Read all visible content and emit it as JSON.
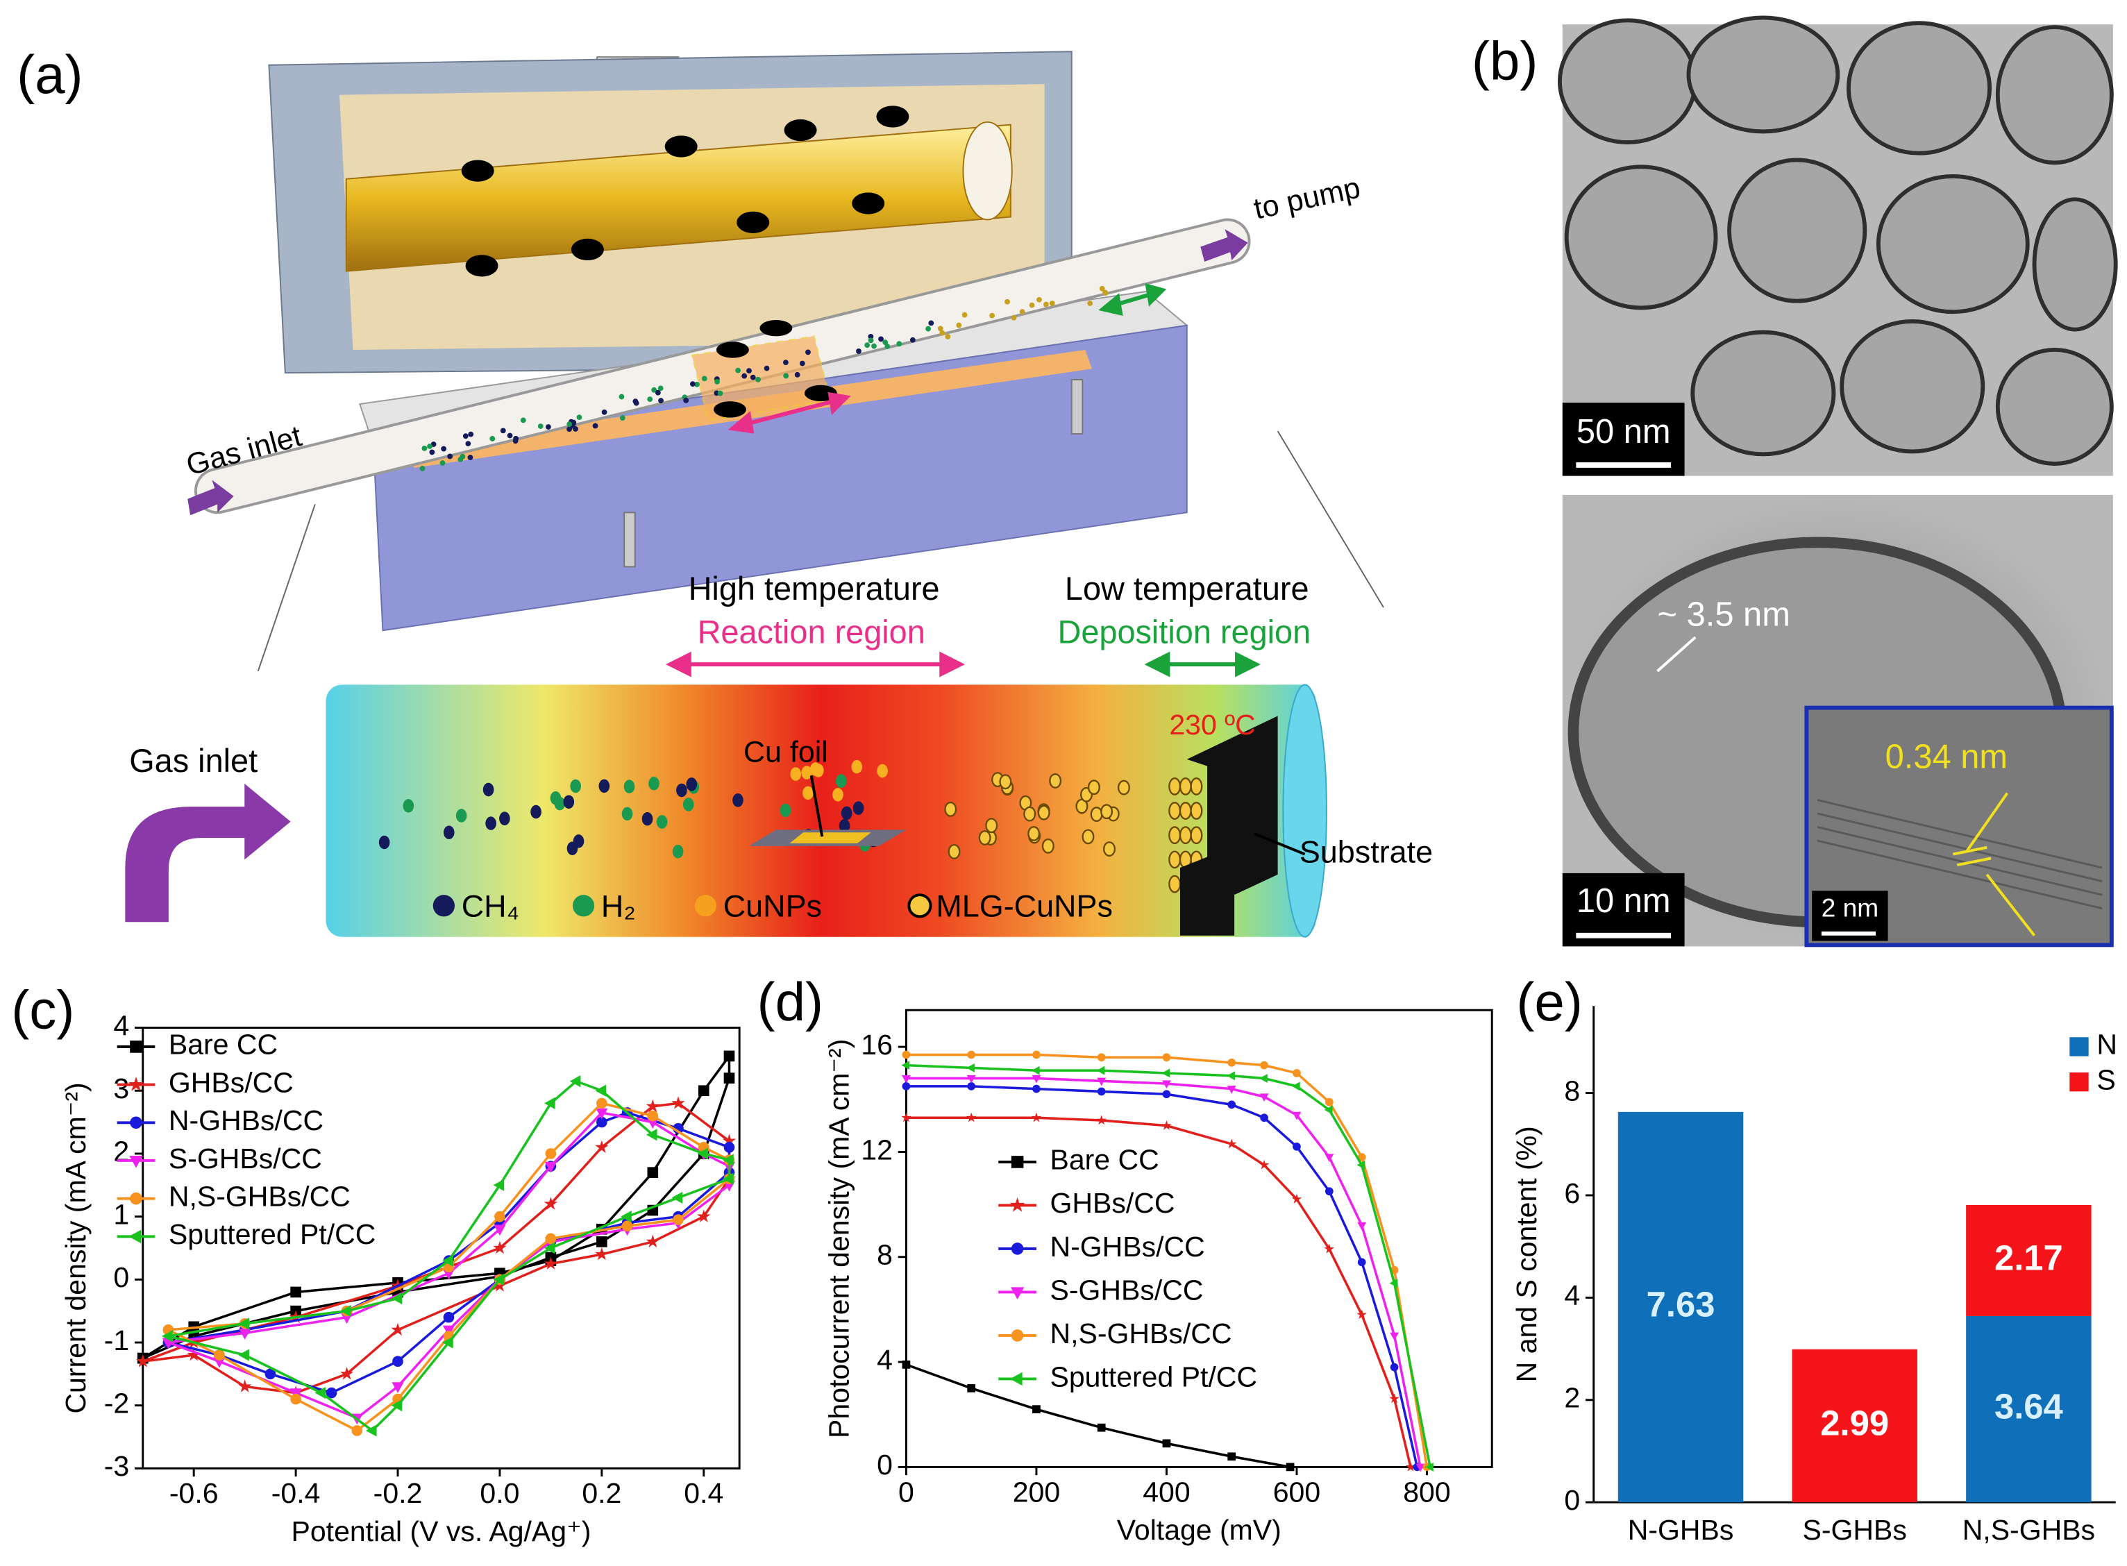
{
  "figure": {
    "panel_a": {
      "label": "(a)",
      "to_pump": "to pump",
      "gas_inlet_tube": "Gas inlet",
      "high_temperature": "High temperature",
      "reaction_region": "Reaction region",
      "low_temperature": "Low temperature",
      "deposition_region": "Deposition region",
      "gas_inlet": "Gas inlet",
      "cu_foil": "Cu foil",
      "temperature": "230 ºC",
      "substrate": "Substrate",
      "legend": [
        "CH₄",
        "H₂",
        "CuNPs",
        "MLG-CuNPs"
      ]
    },
    "panel_b": {
      "label": "(b)",
      "scale_top": "50 nm",
      "wall": "~ 3.5 nm",
      "spacing": "0.34 nm",
      "scale_bottom": "10 nm",
      "scale_inset": "2 nm"
    }
  },
  "chart_data": [
    {
      "type": "line",
      "panel_label": "(c)",
      "xlabel": "Potential (V vs. Ag/Ag⁺)",
      "ylabel": "Current density (mA cm⁻²)",
      "xlim": [
        -0.7,
        0.47
      ],
      "xticks": [
        -0.6,
        -0.4,
        -0.2,
        {
          "value": 0,
          "label": "0.0"
        },
        0.2,
        0.4
      ],
      "ylim": [
        -3,
        4
      ],
      "yticks": [
        -3,
        -2,
        -1,
        0,
        1,
        2,
        3,
        4
      ],
      "legend": "upper left",
      "series": [
        {
          "name": "Bare CC",
          "color": "#000000",
          "marker": "square",
          "x": [
            -0.7,
            -0.6,
            -0.4,
            -0.2,
            0,
            0.1,
            0.2,
            0.3,
            0.4,
            0.45,
            0.45,
            0.4,
            0.3,
            0.2,
            0.1,
            0,
            -0.2,
            -0.4,
            -0.6,
            -0.7
          ],
          "values": [
            -1.25,
            -0.75,
            -0.2,
            -0.05,
            0.1,
            0.3,
            0.8,
            1.7,
            3.0,
            3.55,
            3.2,
            2.0,
            1.1,
            0.6,
            0.35,
            0.05,
            -0.2,
            -0.5,
            -0.9,
            -1.25
          ]
        },
        {
          "name": "GHBs/CC",
          "color": "#e0201c",
          "marker": "star",
          "x": [
            -0.7,
            -0.6,
            -0.4,
            -0.2,
            0,
            0.1,
            0.2,
            0.3,
            0.35,
            0.45,
            0.45,
            0.4,
            0.3,
            0.2,
            0.1,
            0,
            -0.2,
            -0.3,
            -0.4,
            -0.5,
            -0.6,
            -0.7
          ],
          "values": [
            -1.3,
            -1.0,
            -0.6,
            -0.1,
            0.5,
            1.2,
            2.1,
            2.75,
            2.8,
            2.2,
            1.6,
            1.0,
            0.6,
            0.4,
            0.25,
            -0.1,
            -0.8,
            -1.5,
            -1.8,
            -1.7,
            -1.2,
            -1.3
          ]
        },
        {
          "name": "N-GHBs/CC",
          "color": "#1a1adb",
          "marker": "circle",
          "x": [
            -0.65,
            -0.5,
            -0.3,
            -0.1,
            0,
            0.1,
            0.2,
            0.25,
            0.35,
            0.45,
            0.45,
            0.35,
            0.25,
            0.1,
            0,
            -0.1,
            -0.2,
            -0.33,
            -0.45,
            -0.55,
            -0.65
          ],
          "values": [
            -1.0,
            -0.8,
            -0.5,
            0.3,
            0.9,
            1.8,
            2.5,
            2.65,
            2.4,
            2.1,
            1.7,
            1.0,
            0.9,
            0.6,
            0,
            -0.6,
            -1.3,
            -1.8,
            -1.5,
            -1.2,
            -1.0
          ]
        },
        {
          "name": "S-GHBs/CC",
          "color": "#ee22ee",
          "marker": "triangle-down",
          "x": [
            -0.65,
            -0.5,
            -0.3,
            -0.1,
            0,
            0.1,
            0.2,
            0.3,
            0.4,
            0.45,
            0.45,
            0.35,
            0.25,
            0.1,
            0,
            -0.1,
            -0.2,
            -0.28,
            -0.4,
            -0.55,
            -0.65
          ],
          "values": [
            -1.0,
            -0.85,
            -0.6,
            0.1,
            0.8,
            1.8,
            2.65,
            2.5,
            2.0,
            1.8,
            1.5,
            0.9,
            0.8,
            0.6,
            0,
            -0.8,
            -1.7,
            -2.2,
            -1.8,
            -1.3,
            -1.0
          ]
        },
        {
          "name": "N,S-GHBs/CC",
          "color": "#f7921e",
          "marker": "circle",
          "x": [
            -0.65,
            -0.5,
            -0.3,
            -0.1,
            0,
            0.1,
            0.2,
            0.3,
            0.4,
            0.45,
            0.45,
            0.35,
            0.25,
            0.1,
            0,
            -0.1,
            -0.2,
            -0.28,
            -0.4,
            -0.55,
            -0.65
          ],
          "values": [
            -0.8,
            -0.7,
            -0.5,
            0.2,
            1.0,
            2.0,
            2.8,
            2.6,
            2.1,
            1.9,
            1.6,
            0.95,
            0.85,
            0.65,
            0,
            -0.9,
            -1.9,
            -2.4,
            -1.9,
            -1.2,
            -0.8
          ]
        },
        {
          "name": "Sputtered Pt/CC",
          "color": "#19c21e",
          "marker": "triangle-left",
          "x": [
            -0.65,
            -0.5,
            -0.3,
            -0.2,
            -0.1,
            0,
            0.1,
            0.15,
            0.2,
            0.3,
            0.4,
            0.45,
            0.45,
            0.35,
            0.25,
            0.1,
            0,
            -0.1,
            -0.2,
            -0.25,
            -0.35,
            -0.5,
            -0.65
          ],
          "values": [
            -0.9,
            -0.7,
            -0.5,
            -0.3,
            0.3,
            1.5,
            2.8,
            3.15,
            3.0,
            2.3,
            2.0,
            1.9,
            1.6,
            1.3,
            1.0,
            0.5,
            0,
            -1.0,
            -2.0,
            -2.4,
            -1.8,
            -1.2,
            -0.9
          ]
        }
      ]
    },
    {
      "type": "line",
      "panel_label": "(d)",
      "xlabel": "Voltage (mV)",
      "ylabel": "Photocurrent density (mA cm⁻²)",
      "xlim": [
        0,
        900
      ],
      "xticks": [
        0,
        200,
        400,
        600,
        800
      ],
      "ylim": [
        0,
        17.4
      ],
      "yticks": [
        0,
        4,
        8,
        12,
        16
      ],
      "legend": "center",
      "series": [
        {
          "name": "Bare CC",
          "color": "#000000",
          "marker": "square",
          "x": [
            0,
            100,
            200,
            300,
            400,
            500,
            590
          ],
          "values": [
            3.9,
            3.0,
            2.2,
            1.5,
            0.9,
            0.4,
            0
          ]
        },
        {
          "name": "GHBs/CC",
          "color": "#e0201c",
          "marker": "star",
          "x": [
            0,
            100,
            200,
            300,
            400,
            500,
            550,
            600,
            650,
            700,
            750,
            775
          ],
          "values": [
            13.3,
            13.3,
            13.3,
            13.2,
            13.0,
            12.3,
            11.5,
            10.2,
            8.3,
            5.8,
            2.6,
            0
          ]
        },
        {
          "name": "N-GHBs/CC",
          "color": "#1a1adb",
          "marker": "circle",
          "x": [
            0,
            100,
            200,
            300,
            400,
            500,
            550,
            600,
            650,
            700,
            750,
            785
          ],
          "values": [
            14.5,
            14.5,
            14.4,
            14.3,
            14.2,
            13.8,
            13.3,
            12.2,
            10.5,
            7.8,
            3.8,
            0
          ]
        },
        {
          "name": "S-GHBs/CC",
          "color": "#ee22ee",
          "marker": "triangle-down",
          "x": [
            0,
            100,
            200,
            300,
            400,
            500,
            550,
            600,
            650,
            700,
            750,
            790
          ],
          "values": [
            14.8,
            14.8,
            14.8,
            14.7,
            14.6,
            14.4,
            14.1,
            13.4,
            11.8,
            9.2,
            5.0,
            0
          ]
        },
        {
          "name": "N,S-GHBs/CC",
          "color": "#f7921e",
          "marker": "circle",
          "x": [
            0,
            100,
            200,
            300,
            400,
            500,
            550,
            600,
            650,
            700,
            750,
            800
          ],
          "values": [
            15.7,
            15.7,
            15.7,
            15.6,
            15.6,
            15.4,
            15.3,
            15.0,
            13.9,
            11.8,
            7.5,
            0
          ]
        },
        {
          "name": "Sputtered Pt/CC",
          "color": "#19c21e",
          "marker": "triangle-left",
          "x": [
            0,
            100,
            200,
            300,
            400,
            500,
            550,
            600,
            650,
            700,
            750,
            805
          ],
          "values": [
            15.3,
            15.2,
            15.1,
            15.1,
            15.0,
            14.9,
            14.8,
            14.5,
            13.6,
            11.5,
            7.0,
            0
          ]
        }
      ]
    },
    {
      "type": "bar",
      "stacked": true,
      "panel_label": "(e)",
      "ylabel": "N and S content (%)",
      "categories": [
        "N-GHBs",
        "S-GHBs",
        "N,S-GHBs"
      ],
      "ylim": [
        0,
        9.7
      ],
      "yticks": [
        0,
        2,
        4,
        6,
        8
      ],
      "legend": "upper right",
      "series": [
        {
          "name": "N",
          "color": "#0f6fb8",
          "values": [
            7.63,
            null,
            3.64
          ]
        },
        {
          "name": "S",
          "color": "#f5141a",
          "values": [
            null,
            2.99,
            2.17
          ]
        }
      ]
    }
  ]
}
